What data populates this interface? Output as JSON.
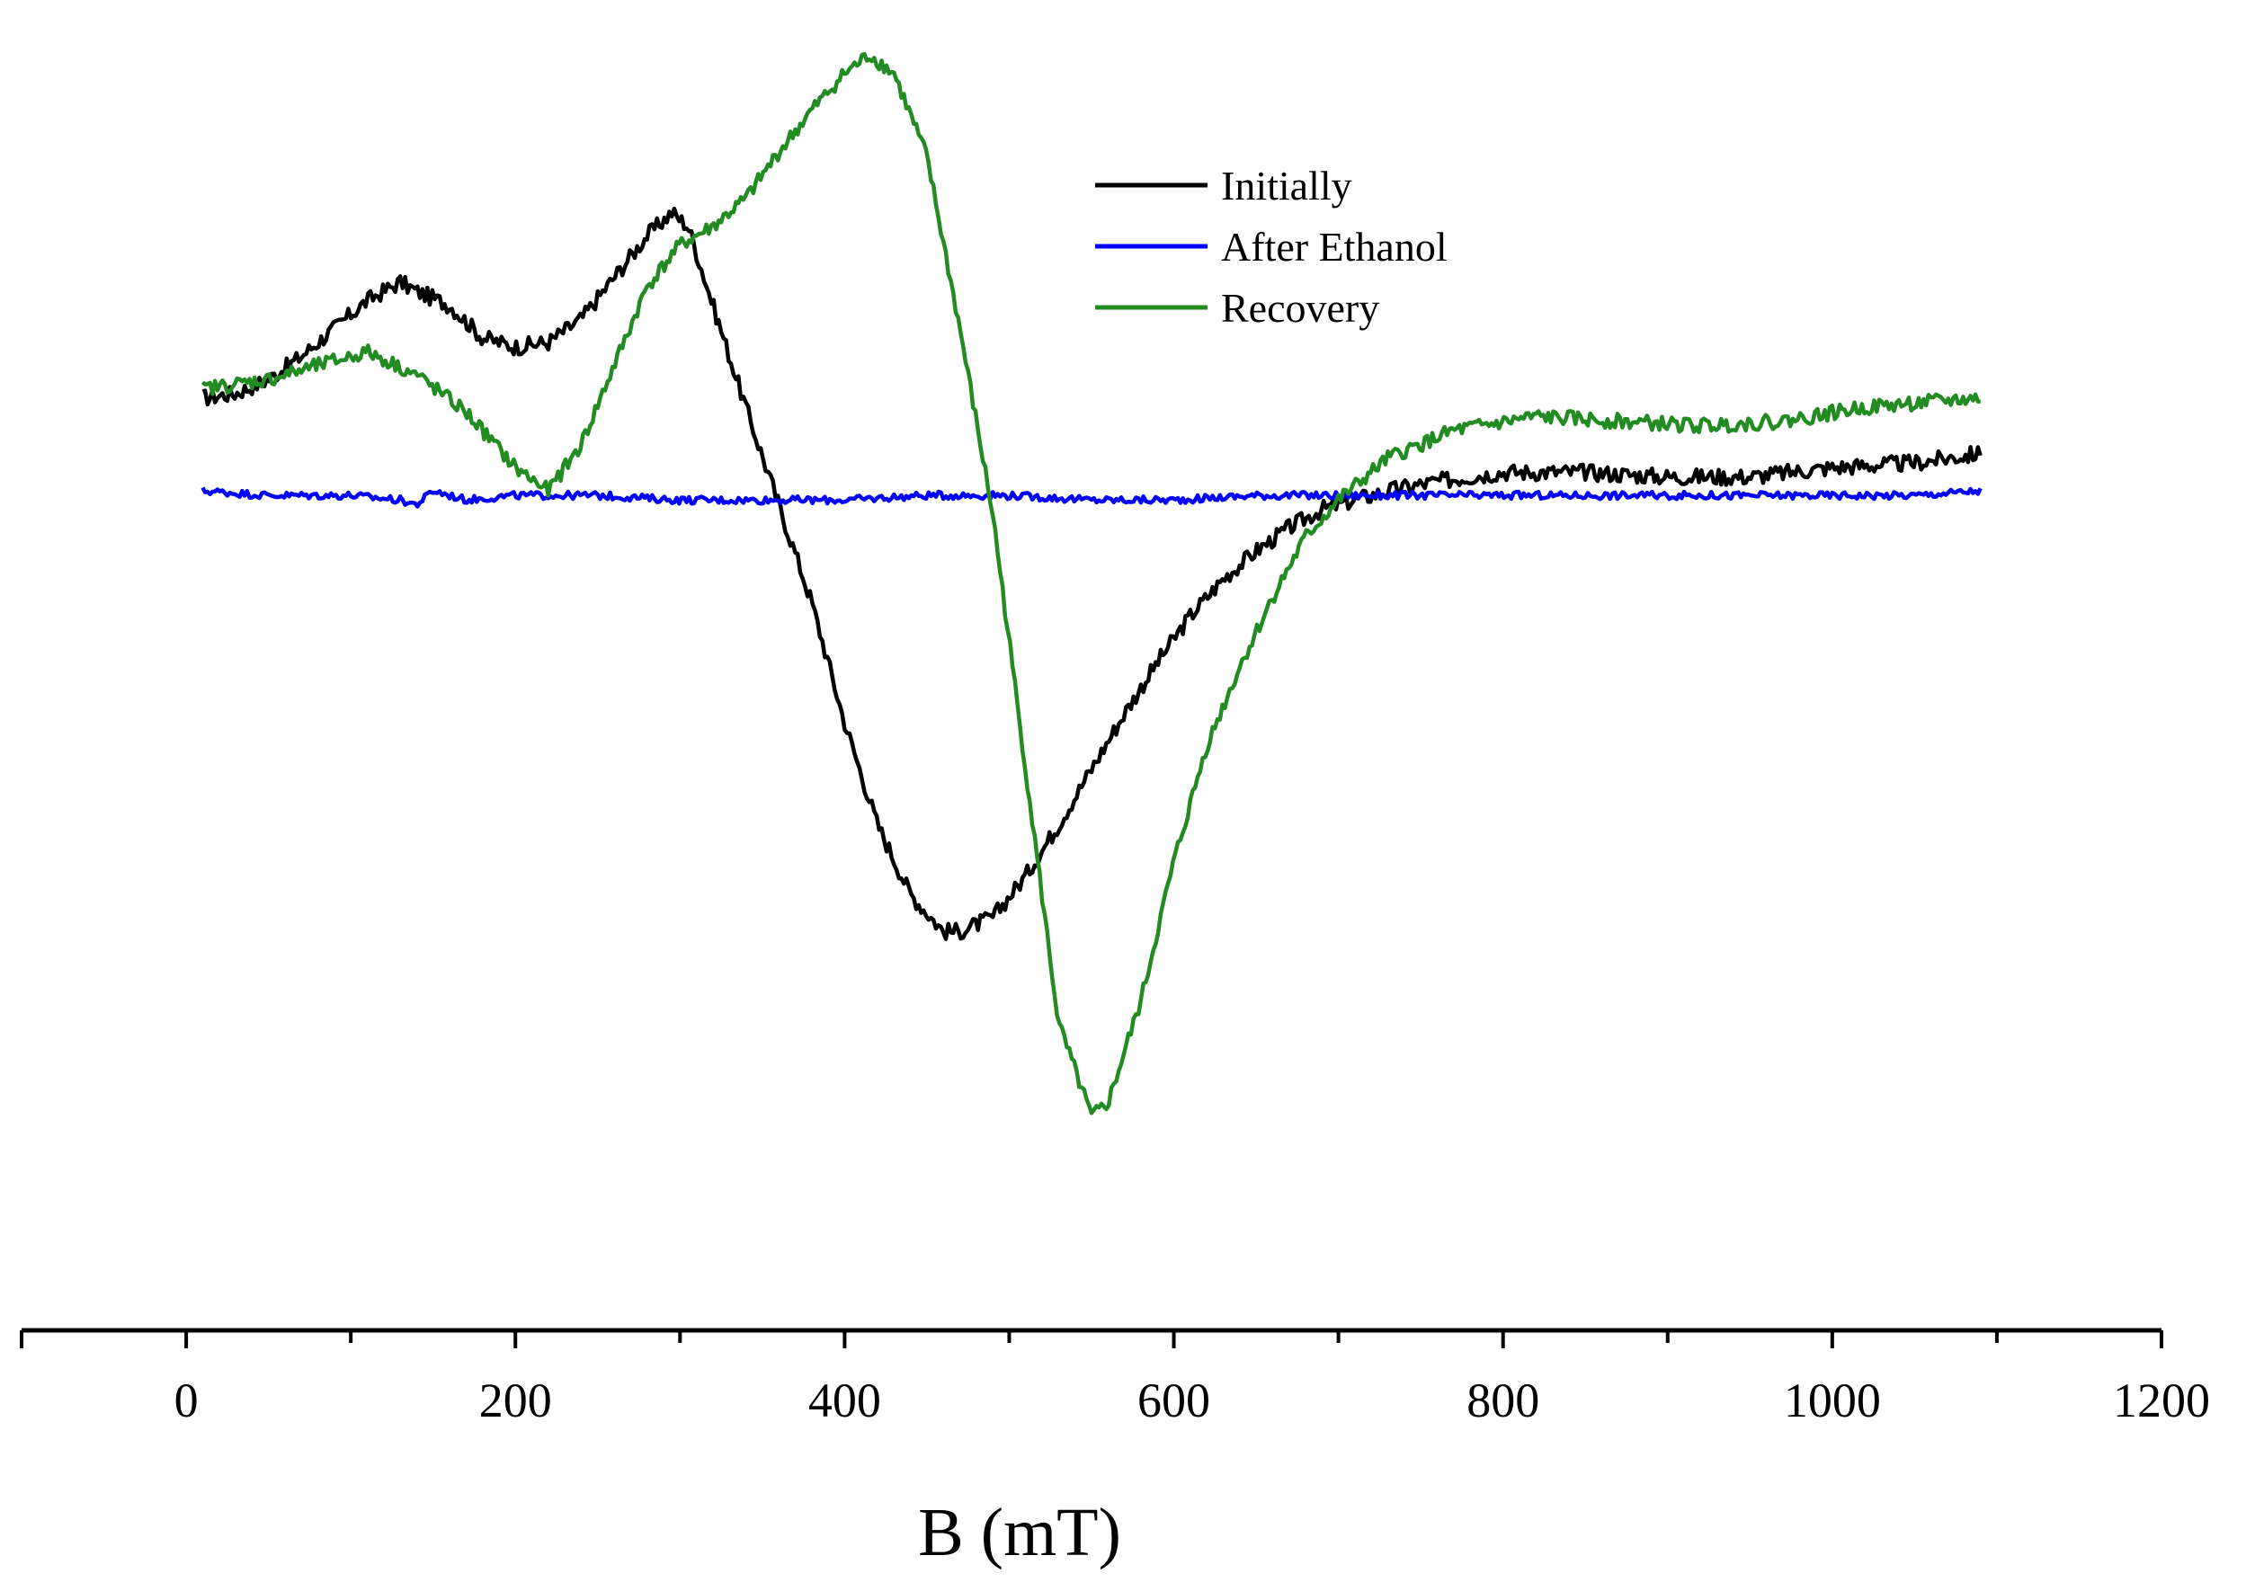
{
  "chart_data": {
    "type": "line",
    "title": "",
    "xlabel": "B (mT)",
    "ylabel": "",
    "xlim": [
      -100,
      1200
    ],
    "ylim": [
      -1.5,
      1.0
    ],
    "x_ticks": [
      0,
      200,
      400,
      600,
      800,
      1000,
      1200
    ],
    "x_tick_labels": [
      "0",
      "200",
      "400",
      "600",
      "800",
      "1000",
      "1200"
    ],
    "y_axis_visible": false,
    "grid": false,
    "legend_position": "top-center",
    "series": [
      {
        "name": "Initially",
        "color": "#000000",
        "x": [
          10,
          30,
          50,
          70,
          90,
          110,
          130,
          140,
          160,
          180,
          200,
          220,
          240,
          260,
          280,
          295,
          305,
          320,
          340,
          360,
          380,
          400,
          420,
          440,
          460,
          470,
          490,
          510,
          530,
          550,
          570,
          590,
          610,
          630,
          650,
          670,
          690,
          710,
          730,
          760,
          800,
          850,
          900,
          950,
          1000,
          1050,
          1090
        ],
        "y": [
          0.2,
          0.21,
          0.24,
          0.29,
          0.35,
          0.41,
          0.45,
          0.43,
          0.4,
          0.33,
          0.31,
          0.32,
          0.37,
          0.46,
          0.55,
          0.6,
          0.57,
          0.4,
          0.18,
          -0.03,
          -0.24,
          -0.5,
          -0.72,
          -0.87,
          -0.95,
          -0.95,
          -0.92,
          -0.83,
          -0.72,
          -0.6,
          -0.48,
          -0.37,
          -0.27,
          -0.19,
          -0.13,
          -0.08,
          -0.04,
          -0.02,
          0.0,
          0.02,
          0.04,
          0.04,
          0.03,
          0.03,
          0.05,
          0.06,
          0.08
        ]
      },
      {
        "name": "After Ethanol",
        "color": "#0000ff",
        "x": [
          10,
          50,
          100,
          130,
          140,
          150,
          170,
          200,
          250,
          300,
          350,
          400,
          450,
          500,
          550,
          600,
          650,
          700,
          750,
          800,
          850,
          900,
          950,
          1000,
          1050,
          1090
        ],
        "y": [
          0.0,
          -0.01,
          -0.01,
          -0.02,
          -0.03,
          0.0,
          -0.02,
          -0.01,
          -0.01,
          -0.02,
          -0.02,
          -0.02,
          -0.01,
          -0.01,
          -0.02,
          -0.02,
          -0.01,
          -0.01,
          -0.01,
          -0.01,
          -0.01,
          -0.01,
          -0.01,
          -0.01,
          -0.01,
          0.0
        ]
      },
      {
        "name": "Recovery",
        "color": "#228b22",
        "x": [
          10,
          50,
          80,
          110,
          140,
          170,
          200,
          220,
          240,
          260,
          280,
          300,
          320,
          340,
          360,
          380,
          400,
          415,
          430,
          450,
          470,
          490,
          510,
          530,
          550,
          560,
          580,
          600,
          620,
          640,
          660,
          680,
          700,
          730,
          770,
          820,
          870,
          920,
          970,
          1020,
          1090
        ],
        "y": [
          0.22,
          0.24,
          0.27,
          0.3,
          0.25,
          0.17,
          0.05,
          0.0,
          0.1,
          0.27,
          0.44,
          0.53,
          0.57,
          0.63,
          0.73,
          0.82,
          0.9,
          0.94,
          0.9,
          0.72,
          0.35,
          -0.05,
          -0.6,
          -1.15,
          -1.35,
          -1.32,
          -1.1,
          -0.8,
          -0.55,
          -0.38,
          -0.23,
          -0.1,
          -0.02,
          0.07,
          0.13,
          0.16,
          0.15,
          0.14,
          0.15,
          0.18,
          0.2
        ]
      }
    ]
  }
}
